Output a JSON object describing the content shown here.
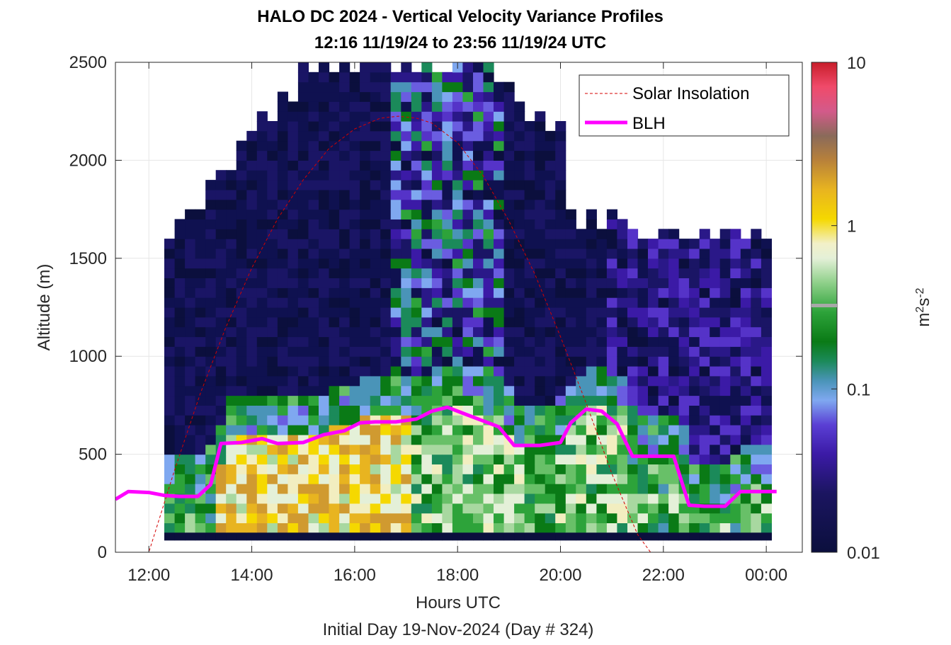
{
  "title": "HALO DC 2024 - Vertical Velocity Variance Profiles",
  "subtitle": "12:16 11/19/24 to 23:56 11/19/24  UTC",
  "xlabel": "Hours UTC",
  "xlabel2": "Initial Day 19-Nov-2024 (Day # 324)",
  "ylabel": "Altitude (m)",
  "colorbar_label": "m²s⁻²",
  "colors": {
    "blh": "#ff00ff",
    "solar": "#d40000",
    "background": "#ffffff"
  },
  "chart_data": {
    "type": "heatmap",
    "x_range_hours": [
      11.35,
      24.7
    ],
    "ylim": [
      0,
      2500
    ],
    "x_ticks": [
      {
        "value": 12,
        "label": "12:00"
      },
      {
        "value": 14,
        "label": "14:00"
      },
      {
        "value": 16,
        "label": "16:00"
      },
      {
        "value": 18,
        "label": "18:00"
      },
      {
        "value": 20,
        "label": "20:00"
      },
      {
        "value": 22,
        "label": "22:00"
      },
      {
        "value": 24,
        "label": "00:00"
      }
    ],
    "y_ticks": [
      0,
      500,
      1000,
      1500,
      2000,
      2500
    ],
    "grid": true,
    "legend_position": "top-right",
    "colorbar": {
      "scale": "log",
      "range": [
        0.01,
        10
      ],
      "ticks": [
        {
          "value": 0.01,
          "label": "0.01"
        },
        {
          "value": 0.1,
          "label": "0.1"
        },
        {
          "value": 1,
          "label": "1"
        },
        {
          "value": 10,
          "label": "10"
        }
      ]
    },
    "series": [
      {
        "name": "Solar Insolation",
        "style": "dashed",
        "x": [
          11.35,
          12.0,
          12.5,
          13.0,
          13.5,
          14.0,
          14.5,
          15.0,
          15.5,
          16.0,
          16.5,
          16.85,
          17.2,
          17.5,
          18.0,
          18.5,
          19.0,
          19.5,
          20.0,
          20.5,
          21.0,
          21.5,
          21.75,
          22.0,
          24.7
        ],
        "values": [
          0,
          0,
          420,
          810,
          1150,
          1450,
          1700,
          1900,
          2060,
          2160,
          2215,
          2225,
          2215,
          2190,
          2090,
          1920,
          1690,
          1420,
          1100,
          760,
          400,
          90,
          0,
          0,
          0
        ]
      },
      {
        "name": "BLH",
        "style": "solid",
        "x": [
          11.35,
          11.6,
          12.0,
          12.3,
          12.6,
          12.95,
          13.2,
          13.4,
          13.8,
          14.2,
          14.5,
          15.0,
          15.4,
          15.8,
          16.1,
          16.4,
          16.8,
          17.2,
          17.5,
          17.8,
          18.1,
          18.4,
          18.8,
          19.1,
          19.6,
          20.0,
          20.2,
          20.5,
          20.8,
          21.1,
          21.4,
          21.6,
          22.2,
          22.5,
          22.8,
          23.2,
          23.5,
          23.8,
          24.2
        ],
        "values": [
          270,
          310,
          305,
          290,
          285,
          285,
          345,
          555,
          560,
          580,
          555,
          560,
          600,
          620,
          660,
          665,
          665,
          680,
          720,
          740,
          710,
          680,
          640,
          545,
          545,
          560,
          660,
          730,
          720,
          655,
          490,
          490,
          490,
          240,
          235,
          235,
          310,
          310,
          310
        ]
      }
    ],
    "heatmap_bins": {
      "start_hour": 12.3,
      "end_hour": 24.0,
      "bin_hours": 0.2,
      "altitude_bin_m": 50,
      "min_altitude_m": 100
    }
  }
}
